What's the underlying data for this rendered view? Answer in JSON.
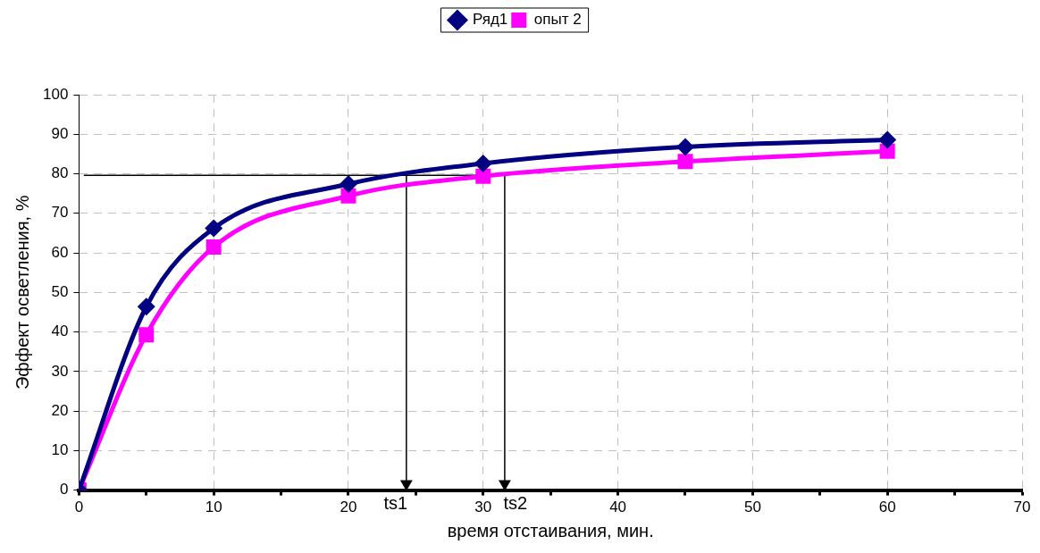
{
  "chart_data": {
    "type": "line",
    "xlabel": "время отстаивания, мин.",
    "ylabel": "Эффект осветления, %",
    "x": [
      0,
      5,
      10,
      20,
      30,
      45,
      60
    ],
    "series": [
      {
        "name": "Ряд1",
        "color": "#000080",
        "marker": "diamond",
        "values": [
          0,
          46.4,
          66.2,
          77.4,
          82.6,
          86.8,
          88.6
        ]
      },
      {
        "name": "опыт 2",
        "color": "#ff00ff",
        "marker": "square",
        "values": [
          0,
          39.3,
          61.5,
          74.4,
          79.4,
          83.1,
          85.7
        ]
      },
      {
        "type": "line",
        "color": "#000000",
        "marker": "none",
        "x": [
          0.4,
          31.6
        ],
        "values": [
          79.6,
          79.6
        ]
      },
      {
        "type": "line",
        "color": "#000000",
        "marker": "triangle",
        "x": [
          24.3,
          24.3
        ],
        "values": [
          79.6,
          1.6
        ]
      },
      {
        "type": "line",
        "color": "#000000",
        "marker": "triangle",
        "x": [
          31.6,
          31.6
        ],
        "values": [
          79.6,
          1.6
        ]
      }
    ],
    "xlim": [
      0,
      70
    ],
    "xticks": [
      0,
      {
        "value": 5,
        "label": null
      },
      10,
      {
        "value": 15,
        "label": null
      },
      20,
      {
        "value": 25,
        "label": null
      },
      30,
      {
        "value": 35,
        "label": null
      },
      40,
      {
        "value": 45,
        "label": null
      },
      50,
      {
        "value": 55,
        "label": null
      },
      60,
      {
        "value": 65,
        "label": null
      },
      70
    ],
    "ylim": [
      0,
      100
    ],
    "yticks": [
      0,
      10,
      20,
      30,
      40,
      50,
      60,
      70,
      80,
      90,
      100
    ],
    "grid": true,
    "legend": "top",
    "annotations": [
      "ts1",
      "ts2"
    ]
  }
}
